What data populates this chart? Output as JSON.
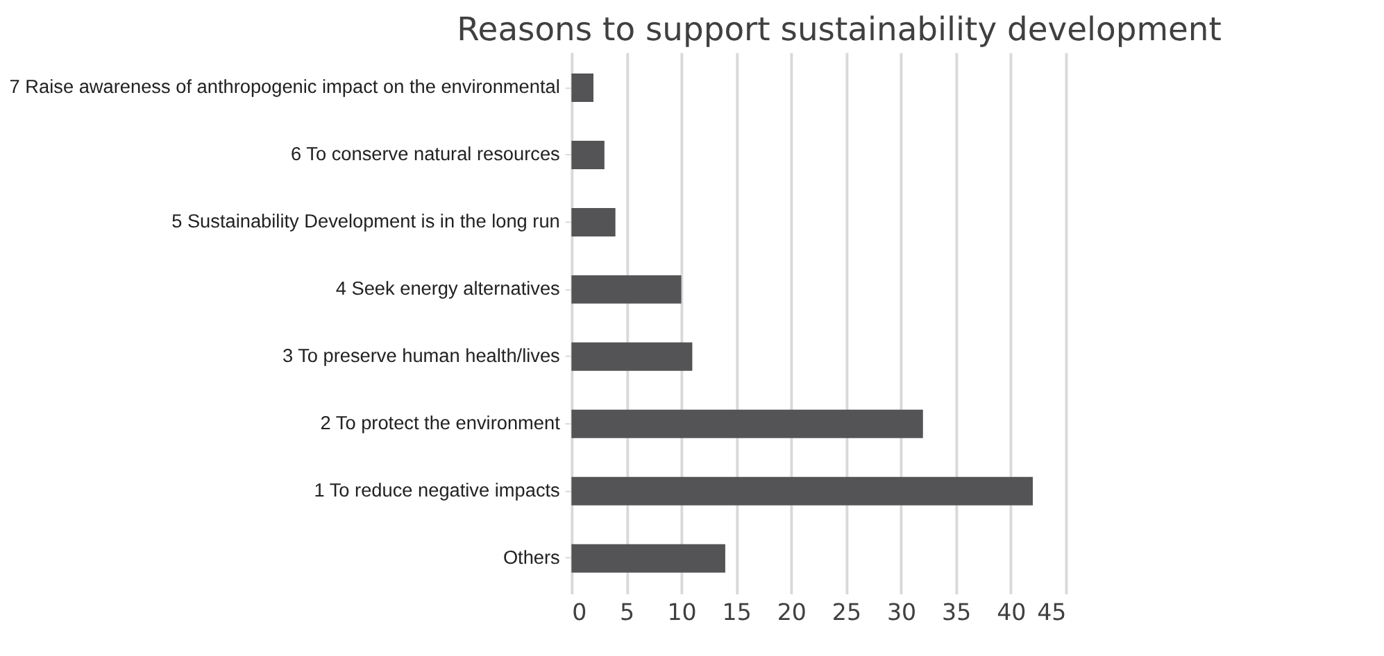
{
  "chart_data": {
    "type": "bar",
    "orientation": "horizontal",
    "title": "Reasons to support sustainability development",
    "categories": [
      "7 Raise awareness of anthropogenic impact on the environmental",
      "6 To conserve natural resources",
      "5 Sustainability Development is in the long run",
      "4 Seek energy alternatives",
      "3 To preserve human health/lives",
      "2 To protect the environment",
      "1 To reduce negative impacts",
      "Others"
    ],
    "values": [
      2,
      3,
      4,
      10,
      11,
      32,
      42,
      14
    ],
    "color": "#545456",
    "xlim": [
      0,
      45
    ],
    "xticks": [
      0,
      5,
      10,
      15,
      20,
      25,
      30,
      35,
      40,
      45
    ],
    "grid": "x"
  }
}
